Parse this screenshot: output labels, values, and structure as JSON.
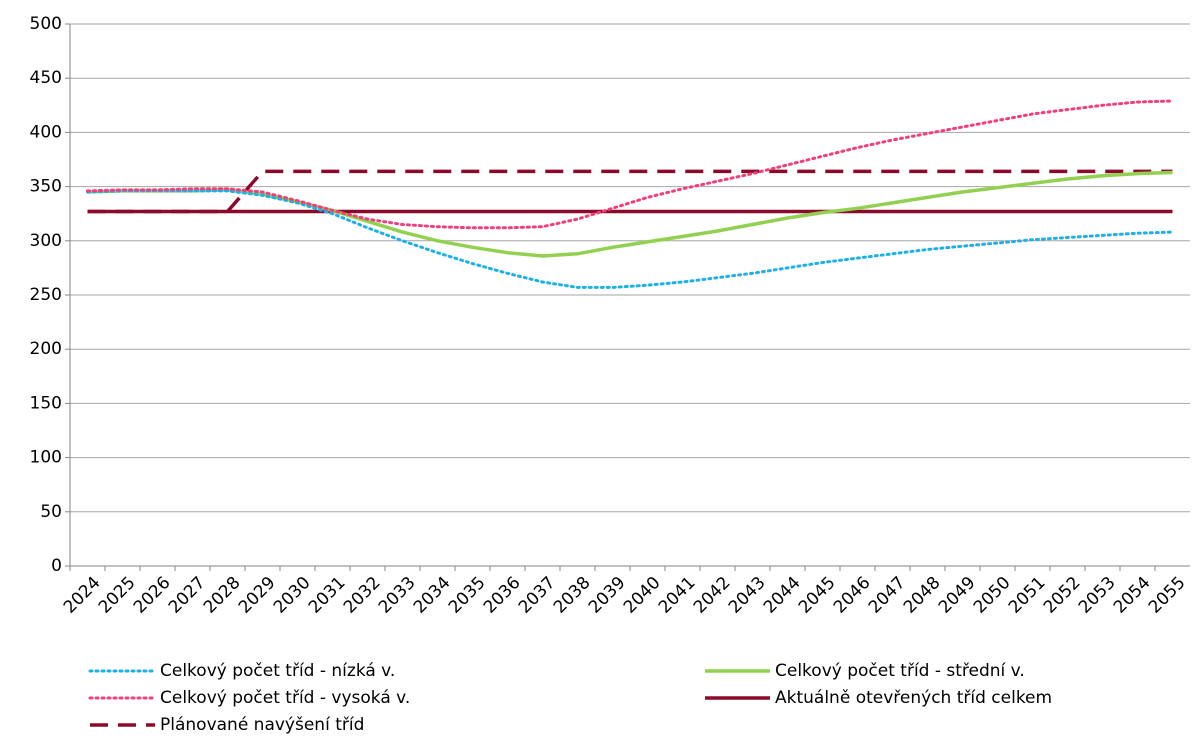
{
  "chart_data": {
    "type": "line",
    "categories": [
      "2024",
      "2025",
      "2026",
      "2027",
      "2028",
      "2029",
      "2030",
      "2031",
      "2032",
      "2033",
      "2034",
      "2035",
      "2036",
      "2037",
      "2038",
      "2039",
      "2040",
      "2041",
      "2042",
      "2043",
      "2044",
      "2045",
      "2046",
      "2047",
      "2048",
      "2049",
      "2050",
      "2051",
      "2052",
      "2053",
      "2054",
      "2055"
    ],
    "series": [
      {
        "name": "Celkový počet tříd - nízká v.",
        "color": "#1fb0e4",
        "style": "dotted",
        "values": [
          345,
          346,
          346,
          346,
          346,
          342,
          335,
          325,
          312,
          300,
          289,
          279,
          270,
          262,
          257,
          257,
          259,
          262,
          266,
          270,
          275,
          280,
          284,
          288,
          292,
          295,
          298,
          301,
          303,
          305,
          307,
          308
        ]
      },
      {
        "name": "Celkový počet tříd - střední v.",
        "color": "#92d050",
        "style": "solid",
        "values": [
          345,
          346,
          346,
          346,
          347,
          343,
          336,
          328,
          318,
          308,
          300,
          294,
          289,
          286,
          288,
          294,
          299,
          304,
          309,
          315,
          321,
          326,
          330,
          335,
          340,
          345,
          349,
          353,
          357,
          360,
          362,
          363
        ]
      },
      {
        "name": "Celkový počet tříd - vysoká v.",
        "color": "#f0407a",
        "style": "dotted",
        "values": [
          346,
          347,
          347,
          348,
          348,
          345,
          337,
          328,
          320,
          315,
          313,
          312,
          312,
          313,
          320,
          330,
          340,
          348,
          355,
          362,
          370,
          378,
          386,
          393,
          399,
          405,
          411,
          417,
          421,
          425,
          428,
          429
        ]
      },
      {
        "name": "Aktuálně otevřených tříd celkem",
        "color": "#8b0a2c",
        "style": "solid",
        "values": [
          327,
          327,
          327,
          327,
          327,
          327,
          327,
          327,
          327,
          327,
          327,
          327,
          327,
          327,
          327,
          327,
          327,
          327,
          327,
          327,
          327,
          327,
          327,
          327,
          327,
          327,
          327,
          327,
          327,
          327,
          327,
          327
        ]
      },
      {
        "name": "Plánované navýšení tříd",
        "color": "#8b0a2c",
        "style": "dashed",
        "values": [
          327,
          327,
          327,
          327,
          327,
          364,
          364,
          364,
          364,
          364,
          364,
          364,
          364,
          364,
          364,
          364,
          364,
          364,
          364,
          364,
          364,
          364,
          364,
          364,
          364,
          364,
          364,
          364,
          364,
          364,
          364,
          364
        ]
      }
    ],
    "ylim": [
      0,
      500
    ],
    "yticks": [
      0,
      50,
      100,
      150,
      200,
      250,
      300,
      350,
      400,
      450,
      500
    ],
    "grid": true
  }
}
